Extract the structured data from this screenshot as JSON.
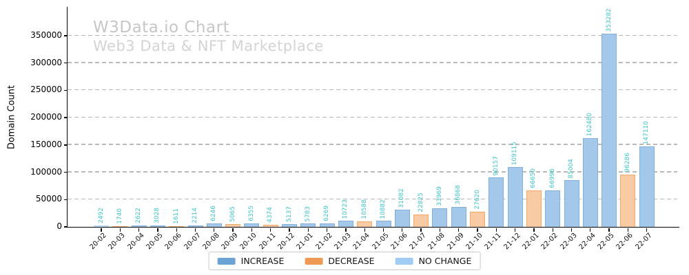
{
  "chart_data": {
    "type": "bar",
    "title": "W3Data.io Chart",
    "subtitle": "Web3 Data & NFT Marketplace",
    "ylabel": "Domain Count",
    "xlabel": "",
    "ylim": [
      0,
      403000
    ],
    "yticks": [
      0,
      50000,
      100000,
      150000,
      200000,
      250000,
      300000,
      350000
    ],
    "grid": "horizontal-dashed",
    "legend_position": "bottom-center",
    "categories": [
      "20-02",
      "20-03",
      "20-04",
      "20-05",
      "20-06",
      "20-07",
      "20-08",
      "20-09",
      "20-10",
      "20-11",
      "20-12",
      "21-01",
      "21-02",
      "21-03",
      "21-04",
      "21-05",
      "21-06",
      "21-07",
      "21-08",
      "21-09",
      "21-10",
      "21-11",
      "21-12",
      "22-01",
      "22-02",
      "22-03",
      "22-04",
      "22-05",
      "22-06",
      "22-07"
    ],
    "values": [
      2492,
      1740,
      2622,
      3028,
      1611,
      2214,
      6246,
      5065,
      6355,
      4374,
      5137,
      5783,
      6269,
      10723,
      10588,
      10882,
      31082,
      22825,
      33969,
      36868,
      27620,
      90157,
      109115,
      66650,
      66996,
      85004,
      162480,
      353282,
      96286,
      147110
    ],
    "bar_changes": [
      "no_change",
      "decrease",
      "increase",
      "increase",
      "decrease",
      "increase",
      "increase",
      "decrease",
      "increase",
      "decrease",
      "increase",
      "increase",
      "increase",
      "increase",
      "decrease",
      "increase",
      "increase",
      "decrease",
      "increase",
      "increase",
      "decrease",
      "increase",
      "increase",
      "decrease",
      "increase",
      "increase",
      "increase",
      "increase",
      "decrease",
      "increase"
    ],
    "legend": [
      {
        "label": "INCREASE",
        "key": "increase"
      },
      {
        "label": "DECREASE",
        "key": "decrease"
      },
      {
        "label": "NO CHANGE",
        "key": "no_change"
      }
    ],
    "colors": {
      "increase": {
        "fill": "#a4c8ea",
        "edge": "#7fb0dd",
        "legend": "#6ba3d6"
      },
      "decrease": {
        "fill": "#f8cba4",
        "edge": "#f2a867",
        "legend": "#ee9a55"
      },
      "no_change": {
        "fill": "#c9e3f9",
        "edge": "#aed4f5",
        "legend": "#9fccf5"
      },
      "value_label": "#3fc5c8",
      "title": "#c6c6c6",
      "subtitle": "#d3d3d3",
      "gridline": "#b9b9b9"
    }
  }
}
